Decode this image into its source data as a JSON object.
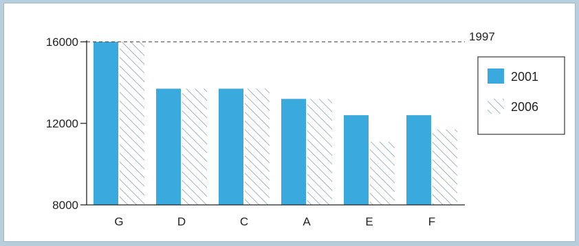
{
  "chart_data": {
    "type": "bar",
    "categories": [
      "G",
      "D",
      "C",
      "A",
      "E",
      "F"
    ],
    "series": [
      {
        "name": "2001",
        "values": [
          16000,
          13700,
          13700,
          13200,
          12400,
          12400
        ]
      },
      {
        "name": "2006",
        "values": [
          16000,
          13700,
          13700,
          13200,
          11100,
          11700
        ]
      }
    ],
    "yticks": [
      8000,
      12000,
      16000
    ],
    "ylim": [
      8000,
      16000
    ],
    "reference_line": {
      "label": "1997",
      "value": 16000
    },
    "legend_position": "right",
    "colors": {
      "2001": "#3aaade",
      "2006_hatch": "#7b95a6"
    },
    "grid": false
  }
}
